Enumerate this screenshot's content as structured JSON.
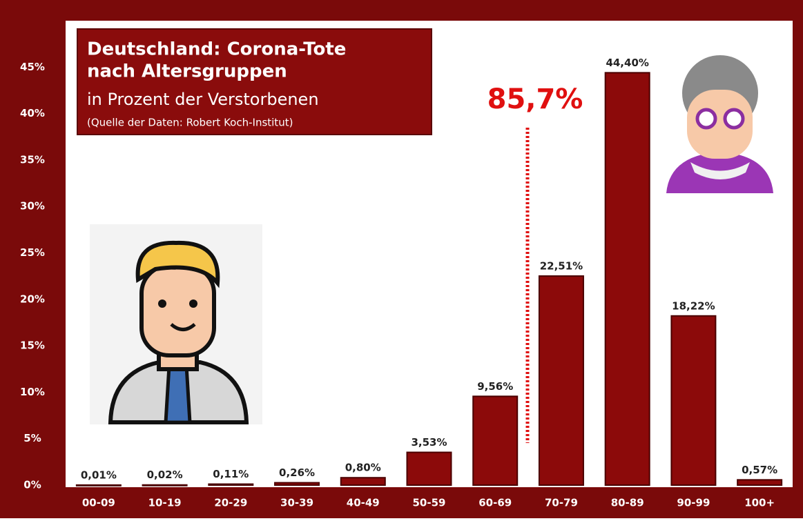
{
  "chart_data": {
    "type": "bar",
    "title": [
      "Deutschland: Corona-Tote",
      "nach Altersgruppen"
    ],
    "subtitle": "in Prozent der Verstorbenen",
    "source": "(Quelle der Daten: Robert Koch-Institut)",
    "annotation": "85,7%",
    "categories": [
      "00-09",
      "10-19",
      "20-29",
      "30-39",
      "40-49",
      "50-59",
      "60-69",
      "70-79",
      "80-89",
      "90-99",
      "100+"
    ],
    "values": [
      0.01,
      0.02,
      0.11,
      0.26,
      0.8,
      3.53,
      9.56,
      22.51,
      44.4,
      18.22,
      0.57
    ],
    "value_labels": [
      "0,01%",
      "0,02%",
      "0,11%",
      "0,26%",
      "0,80%",
      "3,53%",
      "9,56%",
      "22,51%",
      "44,40%",
      "18,22%",
      "0,57%"
    ],
    "color": "#8c0a0a",
    "ylim": [
      0,
      50
    ],
    "yticks": [
      {
        "value": 0,
        "label": "0%"
      },
      {
        "value": 5,
        "label": "5%"
      },
      {
        "value": 10,
        "label": "10%"
      },
      {
        "value": 15,
        "label": "15%"
      },
      {
        "value": 20,
        "label": "20%"
      },
      {
        "value": 25,
        "label": "25%"
      },
      {
        "value": 30,
        "label": "30%"
      },
      {
        "value": 35,
        "label": "35%"
      },
      {
        "value": 40,
        "label": "40%"
      },
      {
        "value": 45,
        "label": "45%"
      }
    ],
    "grid": false
  }
}
